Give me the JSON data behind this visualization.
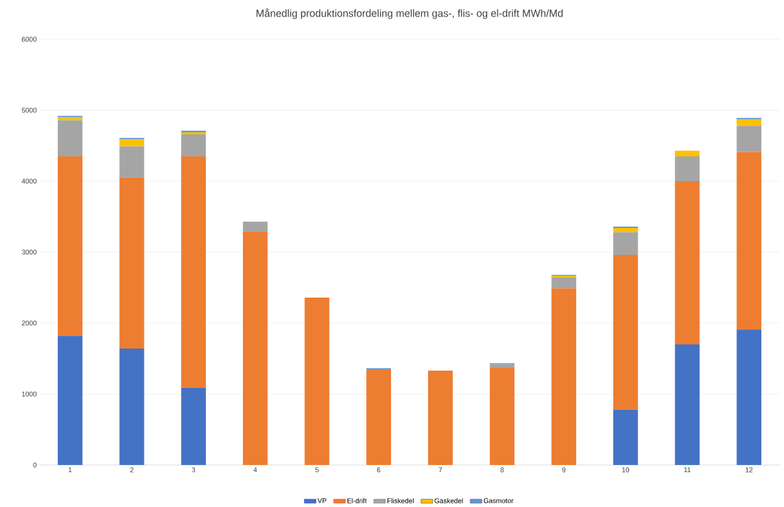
{
  "chart_data": {
    "type": "bar",
    "title": "Månedlig produktionsfordeling mellem gas-, flis- og el-drift MWh/Md",
    "categories": [
      "1",
      "2",
      "3",
      "4",
      "5",
      "6",
      "7",
      "8",
      "9",
      "10",
      "11",
      "12"
    ],
    "stacked": true,
    "ylim": [
      0,
      6000
    ],
    "yticks": [
      0,
      1000,
      2000,
      3000,
      4000,
      5000,
      6000
    ],
    "grid": "y",
    "legend": "bottom",
    "series": [
      {
        "name": "VP",
        "color": "#4472c4",
        "values": [
          1820,
          1640,
          1090,
          0,
          0,
          0,
          0,
          0,
          0,
          780,
          1700,
          1910
        ]
      },
      {
        "name": "El-drift",
        "color": "#ed7d31",
        "values": [
          2530,
          2410,
          3260,
          3290,
          2360,
          1350,
          1330,
          1370,
          2490,
          2180,
          2300,
          2500
        ]
      },
      {
        "name": "Fliskedel",
        "color": "#a5a5a5",
        "values": [
          510,
          440,
          310,
          140,
          0,
          0,
          0,
          50,
          150,
          320,
          350,
          370
        ]
      },
      {
        "name": "Gaskedel",
        "color": "#ffc000",
        "values": [
          40,
          100,
          30,
          0,
          0,
          0,
          0,
          0,
          30,
          60,
          80,
          90
        ]
      },
      {
        "name": "Gasmotor",
        "color": "#5b9bd5",
        "values": [
          20,
          20,
          20,
          0,
          0,
          15,
          0,
          15,
          10,
          20,
          0,
          20
        ]
      }
    ]
  }
}
